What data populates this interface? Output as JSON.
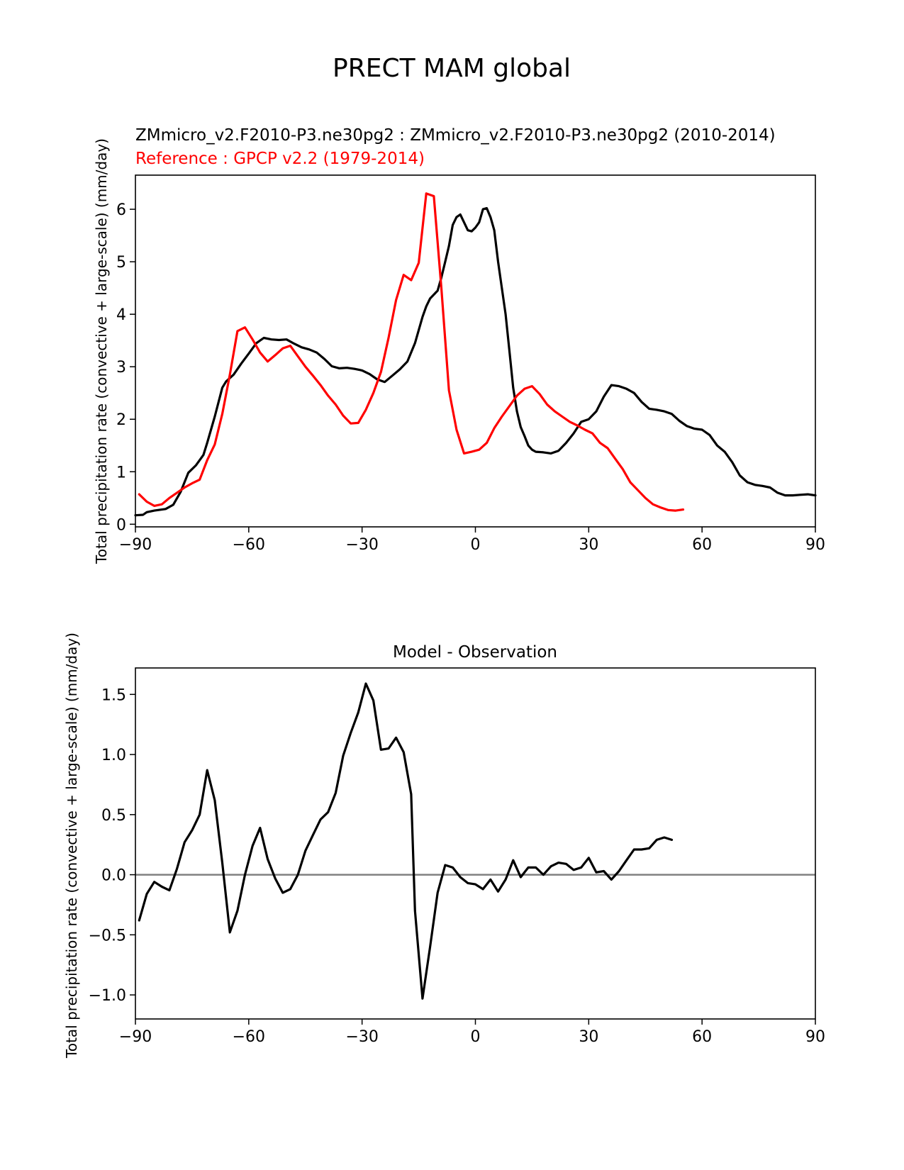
{
  "figure": {
    "title": "PRECT MAM global"
  },
  "chart_data": [
    {
      "type": "line",
      "title_model": "ZMmicro_v2.F2010-P3.ne30pg2 : ZMmicro_v2.F2010-P3.ne30pg2 (2010-2014)",
      "title_reference": "Reference : GPCP v2.2 (1979-2014)",
      "xlabel": "",
      "ylabel": "Total precipitation rate (convective + large-scale) (mm/day)",
      "xlim": [
        -90,
        90
      ],
      "ylim": [
        -0.05,
        6.65
      ],
      "xticks": [
        -90,
        -60,
        -30,
        0,
        30,
        60,
        90
      ],
      "xtick_labels": [
        "−90",
        "−60",
        "−30",
        "0",
        "30",
        "60",
        "90"
      ],
      "yticks": [
        0,
        1,
        2,
        3,
        4,
        5,
        6
      ],
      "ytick_labels": [
        "0",
        "1",
        "2",
        "3",
        "4",
        "5",
        "6"
      ],
      "grid": false,
      "series": [
        {
          "role": "model",
          "color": "#000000",
          "points": [
            [
              -90,
              0.17
            ],
            [
              -88,
              0.18
            ],
            [
              -87,
              0.23
            ],
            [
              -85,
              0.26
            ],
            [
              -82,
              0.29
            ],
            [
              -80,
              0.37
            ],
            [
              -78,
              0.62
            ],
            [
              -76,
              0.98
            ],
            [
              -74,
              1.12
            ],
            [
              -72,
              1.32
            ],
            [
              -71,
              1.55
            ],
            [
              -69,
              2.05
            ],
            [
              -67,
              2.6
            ],
            [
              -66,
              2.72
            ],
            [
              -64,
              2.85
            ],
            [
              -62,
              3.06
            ],
            [
              -60,
              3.25
            ],
            [
              -58,
              3.45
            ],
            [
              -56,
              3.55
            ],
            [
              -54,
              3.52
            ],
            [
              -52,
              3.51
            ],
            [
              -50,
              3.52
            ],
            [
              -48,
              3.44
            ],
            [
              -46,
              3.37
            ],
            [
              -44,
              3.33
            ],
            [
              -42,
              3.27
            ],
            [
              -40,
              3.15
            ],
            [
              -38,
              3.01
            ],
            [
              -36,
              2.97
            ],
            [
              -34,
              2.98
            ],
            [
              -32,
              2.96
            ],
            [
              -30,
              2.93
            ],
            [
              -28,
              2.86
            ],
            [
              -26,
              2.76
            ],
            [
              -24,
              2.71
            ],
            [
              -22,
              2.83
            ],
            [
              -20,
              2.95
            ],
            [
              -18,
              3.1
            ],
            [
              -16,
              3.45
            ],
            [
              -14,
              3.95
            ],
            [
              -13,
              4.15
            ],
            [
              -12,
              4.3
            ],
            [
              -10,
              4.45
            ],
            [
              -9,
              4.7
            ],
            [
              -8,
              5.0
            ],
            [
              -7,
              5.3
            ],
            [
              -6,
              5.7
            ],
            [
              -5,
              5.85
            ],
            [
              -4,
              5.9
            ],
            [
              -3,
              5.75
            ],
            [
              -2,
              5.6
            ],
            [
              -1,
              5.58
            ],
            [
              0,
              5.65
            ],
            [
              1,
              5.75
            ],
            [
              2,
              6.0
            ],
            [
              3,
              6.02
            ],
            [
              4,
              5.85
            ],
            [
              5,
              5.6
            ],
            [
              6,
              5.0
            ],
            [
              7,
              4.5
            ],
            [
              8,
              4.0
            ],
            [
              9,
              3.3
            ],
            [
              10,
              2.6
            ],
            [
              11,
              2.15
            ],
            [
              12,
              1.85
            ],
            [
              13,
              1.68
            ],
            [
              14,
              1.5
            ],
            [
              15,
              1.42
            ],
            [
              16,
              1.38
            ],
            [
              18,
              1.37
            ],
            [
              20,
              1.35
            ],
            [
              22,
              1.4
            ],
            [
              24,
              1.55
            ],
            [
              26,
              1.73
            ],
            [
              28,
              1.95
            ],
            [
              30,
              2.0
            ],
            [
              32,
              2.15
            ],
            [
              34,
              2.43
            ],
            [
              36,
              2.65
            ],
            [
              38,
              2.63
            ],
            [
              40,
              2.58
            ],
            [
              42,
              2.5
            ],
            [
              44,
              2.33
            ],
            [
              46,
              2.2
            ],
            [
              48,
              2.18
            ],
            [
              50,
              2.15
            ],
            [
              52,
              2.1
            ],
            [
              54,
              1.97
            ],
            [
              56,
              1.87
            ],
            [
              58,
              1.82
            ],
            [
              60,
              1.8
            ],
            [
              62,
              1.7
            ],
            [
              64,
              1.5
            ],
            [
              66,
              1.38
            ],
            [
              68,
              1.18
            ],
            [
              70,
              0.93
            ],
            [
              72,
              0.8
            ],
            [
              74,
              0.75
            ],
            [
              76,
              0.73
            ],
            [
              78,
              0.7
            ],
            [
              80,
              0.6
            ],
            [
              82,
              0.55
            ],
            [
              84,
              0.55
            ],
            [
              86,
              0.56
            ],
            [
              88,
              0.57
            ],
            [
              90,
              0.55
            ]
          ]
        },
        {
          "role": "reference",
          "color": "#ff0000",
          "points": [
            [
              -89,
              0.57
            ],
            [
              -87,
              0.43
            ],
            [
              -85,
              0.35
            ],
            [
              -83,
              0.38
            ],
            [
              -81,
              0.5
            ],
            [
              -79,
              0.6
            ],
            [
              -77,
              0.7
            ],
            [
              -75,
              0.78
            ],
            [
              -73,
              0.85
            ],
            [
              -71,
              1.22
            ],
            [
              -69,
              1.52
            ],
            [
              -67,
              2.1
            ],
            [
              -65,
              2.85
            ],
            [
              -63,
              3.68
            ],
            [
              -61,
              3.75
            ],
            [
              -59,
              3.52
            ],
            [
              -57,
              3.27
            ],
            [
              -55,
              3.1
            ],
            [
              -53,
              3.22
            ],
            [
              -51,
              3.35
            ],
            [
              -49,
              3.4
            ],
            [
              -47,
              3.2
            ],
            [
              -45,
              3.0
            ],
            [
              -43,
              2.83
            ],
            [
              -41,
              2.65
            ],
            [
              -39,
              2.45
            ],
            [
              -37,
              2.28
            ],
            [
              -35,
              2.07
            ],
            [
              -33,
              1.92
            ],
            [
              -31,
              1.93
            ],
            [
              -29,
              2.18
            ],
            [
              -27,
              2.5
            ],
            [
              -25,
              2.9
            ],
            [
              -23,
              3.55
            ],
            [
              -21,
              4.27
            ],
            [
              -19,
              4.75
            ],
            [
              -17,
              4.65
            ],
            [
              -15,
              4.98
            ],
            [
              -13,
              6.3
            ],
            [
              -11,
              6.25
            ],
            [
              -9,
              4.5
            ],
            [
              -7,
              2.55
            ],
            [
              -5,
              1.8
            ],
            [
              -3,
              1.35
            ],
            [
              -1,
              1.38
            ],
            [
              1,
              1.42
            ],
            [
              3,
              1.55
            ],
            [
              5,
              1.83
            ],
            [
              7,
              2.05
            ],
            [
              9,
              2.25
            ],
            [
              11,
              2.45
            ],
            [
              13,
              2.58
            ],
            [
              15,
              2.63
            ],
            [
              17,
              2.48
            ],
            [
              19,
              2.28
            ],
            [
              21,
              2.15
            ],
            [
              23,
              2.05
            ],
            [
              25,
              1.95
            ],
            [
              27,
              1.88
            ],
            [
              29,
              1.8
            ],
            [
              31,
              1.73
            ],
            [
              33,
              1.55
            ],
            [
              35,
              1.45
            ],
            [
              37,
              1.25
            ],
            [
              39,
              1.05
            ],
            [
              41,
              0.8
            ],
            [
              43,
              0.65
            ],
            [
              45,
              0.5
            ],
            [
              47,
              0.38
            ],
            [
              49,
              0.32
            ],
            [
              51,
              0.27
            ],
            [
              53,
              0.26
            ],
            [
              55,
              0.28
            ]
          ]
        }
      ]
    },
    {
      "type": "line",
      "title": "Model - Observation",
      "xlabel": "",
      "ylabel": "Total precipitation rate (convective + large-scale) (mm/day)",
      "xlim": [
        -90,
        90
      ],
      "ylim": [
        -1.2,
        1.72
      ],
      "xticks": [
        -90,
        -60,
        -30,
        0,
        30,
        60,
        90
      ],
      "xtick_labels": [
        "−90",
        "−60",
        "−30",
        "0",
        "30",
        "60",
        "90"
      ],
      "yticks": [
        -1.0,
        -0.5,
        0.0,
        0.5,
        1.0,
        1.5
      ],
      "ytick_labels": [
        "−1.0",
        "−0.5",
        "0.0",
        "0.5",
        "1.0",
        "1.5"
      ],
      "grid": false,
      "zero_line_color": "#808080",
      "series": [
        {
          "role": "difference",
          "color": "#000000",
          "points": [
            [
              -89,
              -0.38
            ],
            [
              -87,
              -0.16
            ],
            [
              -85,
              -0.06
            ],
            [
              -83,
              -0.1
            ],
            [
              -81,
              -0.13
            ],
            [
              -79,
              0.05
            ],
            [
              -77,
              0.27
            ],
            [
              -75,
              0.37
            ],
            [
              -73,
              0.5
            ],
            [
              -71,
              0.87
            ],
            [
              -69,
              0.62
            ],
            [
              -67,
              0.1
            ],
            [
              -65,
              -0.48
            ],
            [
              -63,
              -0.3
            ],
            [
              -61,
              0.0
            ],
            [
              -59,
              0.24
            ],
            [
              -57,
              0.39
            ],
            [
              -55,
              0.13
            ],
            [
              -53,
              -0.03
            ],
            [
              -51,
              -0.15
            ],
            [
              -49,
              -0.12
            ],
            [
              -47,
              0.0
            ],
            [
              -45,
              0.2
            ],
            [
              -43,
              0.33
            ],
            [
              -41,
              0.46
            ],
            [
              -39,
              0.52
            ],
            [
              -37,
              0.68
            ],
            [
              -35,
              0.99
            ],
            [
              -33,
              1.18
            ],
            [
              -31,
              1.35
            ],
            [
              -29,
              1.59
            ],
            [
              -27,
              1.45
            ],
            [
              -25,
              1.04
            ],
            [
              -23,
              1.05
            ],
            [
              -21,
              1.14
            ],
            [
              -19,
              1.02
            ],
            [
              -17,
              0.67
            ],
            [
              -16,
              -0.3
            ],
            [
              -14,
              -1.03
            ],
            [
              -12,
              -0.6
            ],
            [
              -10,
              -0.15
            ],
            [
              -8,
              0.08
            ],
            [
              -6,
              0.06
            ],
            [
              -4,
              -0.02
            ],
            [
              -2,
              -0.07
            ],
            [
              0,
              -0.08
            ],
            [
              2,
              -0.12
            ],
            [
              4,
              -0.04
            ],
            [
              6,
              -0.14
            ],
            [
              8,
              -0.04
            ],
            [
              10,
              0.12
            ],
            [
              12,
              -0.02
            ],
            [
              14,
              0.06
            ],
            [
              16,
              0.06
            ],
            [
              18,
              0.0
            ],
            [
              20,
              0.07
            ],
            [
              22,
              0.1
            ],
            [
              24,
              0.09
            ],
            [
              26,
              0.04
            ],
            [
              28,
              0.06
            ],
            [
              30,
              0.14
            ],
            [
              32,
              0.02
            ],
            [
              34,
              0.03
            ],
            [
              36,
              -0.04
            ],
            [
              38,
              0.03
            ],
            [
              40,
              0.12
            ],
            [
              42,
              0.21
            ],
            [
              44,
              0.21
            ],
            [
              46,
              0.22
            ],
            [
              48,
              0.29
            ],
            [
              50,
              0.31
            ],
            [
              52,
              0.29
            ]
          ]
        }
      ]
    }
  ]
}
